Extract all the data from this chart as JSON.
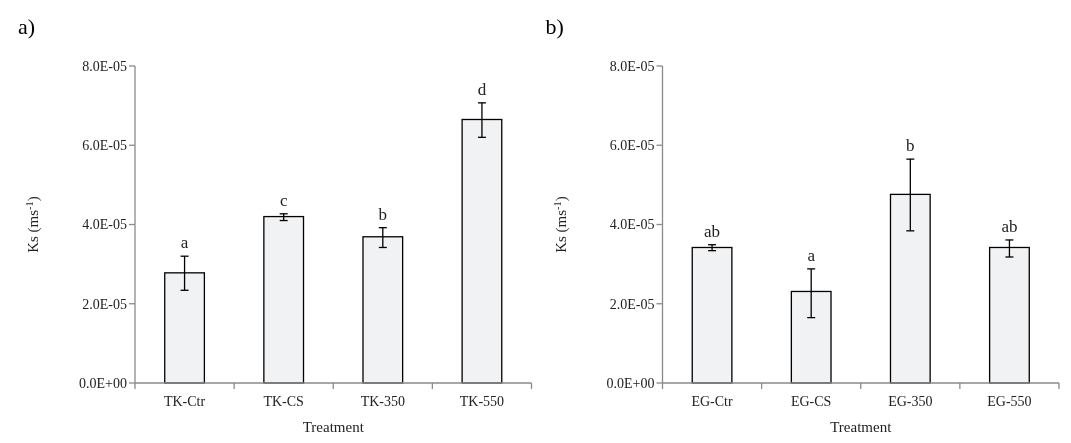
{
  "chart_data": [
    {
      "type": "bar",
      "title": "a)",
      "xlabel": "Treatment",
      "ylabel": "Ks (ms$^{-1}$)",
      "categories": [
        "TK-Ctr",
        "TK-CS",
        "TK-350",
        "TK-550"
      ],
      "values": [
        2.78e-05,
        4.2e-05,
        3.69e-05,
        6.65e-05
      ],
      "errors": [
        [
          2.34e-05,
          3.2e-05
        ],
        [
          4.1e-05,
          4.27e-05
        ],
        [
          3.42e-05,
          3.92e-05
        ],
        [
          6.2e-05,
          7.07e-05
        ]
      ],
      "color": "#f1f2f4",
      "ylim": [
        0,
        8e-05
      ],
      "yticks": [
        {
          "value": 0,
          "label": "0.0E+00"
        },
        {
          "value": 2e-05,
          "label": "2.0E-05"
        },
        {
          "value": 4e-05,
          "label": "4.0E-05"
        },
        {
          "value": 6e-05,
          "label": "6.0E-05"
        },
        {
          "value": 8e-05,
          "label": "8.0E-05"
        }
      ],
      "annotations": [
        {
          "text": "a",
          "x": "TK-Ctr",
          "y": 3.2e-05
        },
        {
          "text": "c",
          "x": "TK-CS",
          "y": 4.27e-05
        },
        {
          "text": "b",
          "x": "TK-350",
          "y": 3.92e-05
        },
        {
          "text": "d",
          "x": "TK-550",
          "y": 7.07e-05
        }
      ]
    },
    {
      "type": "bar",
      "title": "b)",
      "xlabel": "Treatment",
      "ylabel": "Ks (ms$^{-1}$)",
      "categories": [
        "EG-Ctr",
        "EG-CS",
        "EG-350",
        "EG-550"
      ],
      "values": [
        3.42e-05,
        2.31e-05,
        4.76e-05,
        3.42e-05
      ],
      "errors": [
        [
          3.34e-05,
          3.49e-05
        ],
        [
          1.65e-05,
          2.88e-05
        ],
        [
          3.84e-05,
          5.65e-05
        ],
        [
          3.18e-05,
          3.61e-05
        ]
      ],
      "color": "#f1f2f4",
      "ylim": [
        0,
        8e-05
      ],
      "yticks": [
        {
          "value": 0,
          "label": "0.0E+00"
        },
        {
          "value": 2e-05,
          "label": "2.0E-05"
        },
        {
          "value": 4e-05,
          "label": "4.0E-05"
        },
        {
          "value": 6e-05,
          "label": "6.0E-05"
        },
        {
          "value": 8e-05,
          "label": "8.0E-05"
        }
      ],
      "annotations": [
        {
          "text": "ab",
          "x": "EG-Ctr",
          "y": 3.49e-05
        },
        {
          "text": "a",
          "x": "EG-CS",
          "y": 2.88e-05
        },
        {
          "text": "b",
          "x": "EG-350",
          "y": 5.65e-05
        },
        {
          "text": "ab",
          "x": "EG-550",
          "y": 3.61e-05
        }
      ]
    }
  ]
}
